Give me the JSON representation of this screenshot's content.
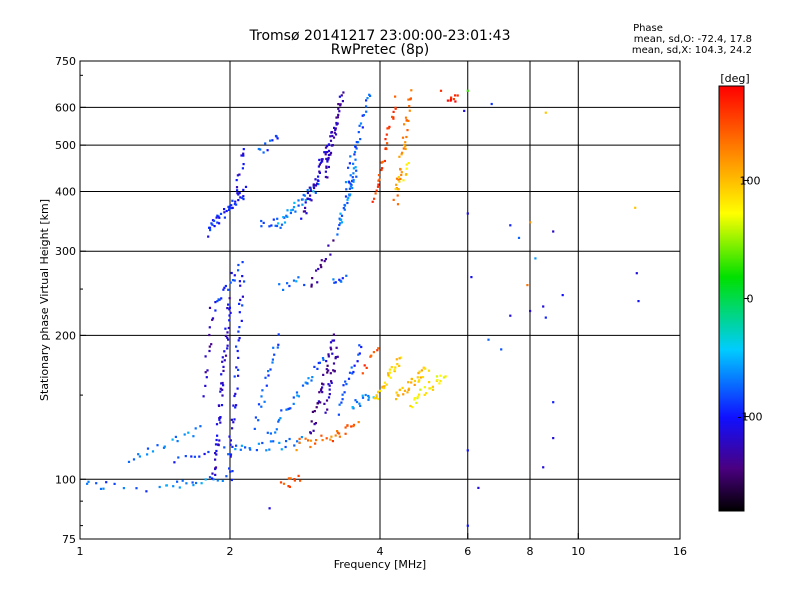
{
  "chart_data": {
    "type": "scatter",
    "title": "Tromsø 20141217 23:00:00-23:01:43",
    "subtitle": "RwPretec (8p)",
    "xlabel": "Frequency [MHz]",
    "ylabel": "Stationary phase Virtual Height [km]",
    "x_scale": "log",
    "y_scale": "log",
    "xlim": [
      1,
      16
    ],
    "ylim": [
      75,
      750
    ],
    "x_ticks": [
      1,
      2,
      4,
      6,
      8,
      10,
      16
    ],
    "y_ticks": [
      75,
      100,
      200,
      300,
      400,
      500,
      600,
      750
    ],
    "x_gridlines": [
      2,
      4,
      6,
      8,
      10
    ],
    "y_gridlines": [
      100,
      200,
      300,
      400,
      500,
      600
    ],
    "grid": true,
    "stats": {
      "heading": "Phase",
      "line_o": "mean, sd,O: -72.4, 17.8",
      "line_x": "mean, sd,X: 104.3, 24.2"
    },
    "colorbar": {
      "label": "[deg]",
      "range": [
        -180,
        180
      ],
      "ticks": [
        100,
        0,
        -100
      ]
    },
    "segments": [
      {
        "f0": 1.0,
        "f1": 1.12,
        "h0": 97,
        "h1": 97,
        "p": -75,
        "n": 6
      },
      {
        "f0": 1.12,
        "f1": 1.35,
        "h0": 97,
        "h1": 96,
        "p": -80,
        "n": 5
      },
      {
        "f0": 1.45,
        "f1": 1.95,
        "h0": 97,
        "h1": 101,
        "p": -65,
        "n": 18
      },
      {
        "f0": 1.25,
        "f1": 1.75,
        "h0": 108,
        "h1": 128,
        "p": -70,
        "n": 18
      },
      {
        "f0": 1.55,
        "f1": 2.0,
        "h0": 110,
        "h1": 120,
        "p": -95,
        "n": 12
      },
      {
        "f0": 1.85,
        "f1": 2.0,
        "h0": 100,
        "h1": 240,
        "p": -115,
        "n": 55
      },
      {
        "f0": 2.0,
        "f1": 2.12,
        "h0": 100,
        "h1": 270,
        "p": -100,
        "n": 40
      },
      {
        "f0": 1.78,
        "f1": 1.84,
        "h0": 150,
        "h1": 230,
        "p": -120,
        "n": 14
      },
      {
        "f0": 2.0,
        "f1": 2.8,
        "h0": 115,
        "h1": 120,
        "p": -70,
        "n": 24
      },
      {
        "f0": 2.25,
        "f1": 2.5,
        "h0": 130,
        "h1": 200,
        "p": -85,
        "n": 20
      },
      {
        "f0": 2.4,
        "f1": 3.1,
        "h0": 125,
        "h1": 180,
        "p": -75,
        "n": 30
      },
      {
        "f0": 2.9,
        "f1": 3.25,
        "h0": 125,
        "h1": 200,
        "p": -130,
        "n": 35
      },
      {
        "f0": 3.1,
        "f1": 3.3,
        "h0": 140,
        "h1": 185,
        "p": -125,
        "n": 20
      },
      {
        "f0": 2.7,
        "f1": 3.2,
        "h0": 118,
        "h1": 122,
        "p": 130,
        "n": 14
      },
      {
        "f0": 3.2,
        "f1": 3.6,
        "h0": 122,
        "h1": 132,
        "p": 140,
        "n": 14
      },
      {
        "f0": 3.3,
        "f1": 3.65,
        "h0": 140,
        "h1": 190,
        "p": -85,
        "n": 20
      },
      {
        "f0": 3.5,
        "f1": 3.85,
        "h0": 142,
        "h1": 150,
        "p": -60,
        "n": 14
      },
      {
        "f0": 3.9,
        "f1": 4.4,
        "h0": 145,
        "h1": 180,
        "p": 90,
        "n": 30
      },
      {
        "f0": 4.3,
        "f1": 5.0,
        "h0": 150,
        "h1": 170,
        "p": 100,
        "n": 30
      },
      {
        "f0": 4.6,
        "f1": 5.4,
        "h0": 145,
        "h1": 165,
        "p": 75,
        "n": 25
      },
      {
        "f0": 3.7,
        "f1": 4.0,
        "h0": 170,
        "h1": 185,
        "p": 150,
        "n": 8
      },
      {
        "f0": 2.55,
        "f1": 2.75,
        "h0": 98,
        "h1": 100,
        "p": 145,
        "n": 10
      },
      {
        "f0": 1.8,
        "f1": 2.15,
        "h0": 330,
        "h1": 400,
        "p": -95,
        "n": 40
      },
      {
        "f0": 2.05,
        "f1": 2.15,
        "h0": 400,
        "h1": 500,
        "p": -110,
        "n": 12
      },
      {
        "f0": 2.3,
        "f1": 2.55,
        "h0": 340,
        "h1": 345,
        "p": -75,
        "n": 10
      },
      {
        "f0": 2.5,
        "f1": 3.0,
        "h0": 345,
        "h1": 410,
        "p": -65,
        "n": 30
      },
      {
        "f0": 2.8,
        "f1": 3.2,
        "h0": 360,
        "h1": 520,
        "p": -115,
        "n": 45
      },
      {
        "f0": 3.1,
        "f1": 3.35,
        "h0": 430,
        "h1": 640,
        "p": -125,
        "n": 40
      },
      {
        "f0": 3.3,
        "f1": 3.6,
        "h0": 330,
        "h1": 460,
        "p": -70,
        "n": 35
      },
      {
        "f0": 3.4,
        "f1": 3.8,
        "h0": 400,
        "h1": 640,
        "p": -80,
        "n": 30
      },
      {
        "f0": 3.9,
        "f1": 4.3,
        "h0": 380,
        "h1": 620,
        "p": 150,
        "n": 30
      },
      {
        "f0": 4.3,
        "f1": 4.6,
        "h0": 380,
        "h1": 640,
        "p": 125,
        "n": 35
      },
      {
        "f0": 4.3,
        "f1": 4.6,
        "h0": 410,
        "h1": 450,
        "p": 90,
        "n": 10
      },
      {
        "f0": 2.3,
        "f1": 2.5,
        "h0": 480,
        "h1": 520,
        "p": -85,
        "n": 10
      },
      {
        "f0": 5.5,
        "f1": 5.7,
        "h0": 610,
        "h1": 640,
        "p": 165,
        "n": 8
      },
      {
        "f0": 1.85,
        "f1": 2.1,
        "h0": 230,
        "h1": 280,
        "p": -95,
        "n": 18
      },
      {
        "f0": 2.5,
        "f1": 2.8,
        "h0": 250,
        "h1": 260,
        "p": -70,
        "n": 8
      },
      {
        "f0": 2.9,
        "f1": 3.2,
        "h0": 250,
        "h1": 310,
        "p": -130,
        "n": 14
      },
      {
        "f0": 3.2,
        "f1": 3.4,
        "h0": 258,
        "h1": 262,
        "p": -80,
        "n": 8
      }
    ],
    "points": [
      {
        "x": 6.0,
        "y": 360,
        "p": -110
      },
      {
        "x": 6.7,
        "y": 610,
        "p": -90
      },
      {
        "x": 7.3,
        "y": 340,
        "p": -95
      },
      {
        "x": 7.6,
        "y": 320,
        "p": -75
      },
      {
        "x": 7.9,
        "y": 255,
        "p": 130
      },
      {
        "x": 8.2,
        "y": 290,
        "p": -60
      },
      {
        "x": 8.5,
        "y": 230,
        "p": -110
      },
      {
        "x": 8.9,
        "y": 330,
        "p": -120
      },
      {
        "x": 9.3,
        "y": 243,
        "p": -100
      },
      {
        "x": 13.0,
        "y": 370,
        "p": 95
      },
      {
        "x": 13.1,
        "y": 270,
        "p": -110
      },
      {
        "x": 13.2,
        "y": 236,
        "p": -100
      },
      {
        "x": 6.0,
        "y": 115,
        "p": -100
      },
      {
        "x": 6.1,
        "y": 265,
        "p": -105
      },
      {
        "x": 6.3,
        "y": 96,
        "p": -110
      },
      {
        "x": 6.6,
        "y": 196,
        "p": -75
      },
      {
        "x": 7.0,
        "y": 187,
        "p": -80
      },
      {
        "x": 7.3,
        "y": 220,
        "p": -110
      },
      {
        "x": 8.5,
        "y": 106,
        "p": -110
      },
      {
        "x": 8.6,
        "y": 218,
        "p": -95
      },
      {
        "x": 8.9,
        "y": 122,
        "p": -110
      },
      {
        "x": 8.9,
        "y": 145,
        "p": -95
      },
      {
        "x": 8.6,
        "y": 585,
        "p": 95
      },
      {
        "x": 6.0,
        "y": 80,
        "p": -100
      },
      {
        "x": 2.4,
        "y": 87,
        "p": -110
      },
      {
        "x": 5.9,
        "y": 590,
        "p": -110
      },
      {
        "x": 5.3,
        "y": 650,
        "p": 160
      },
      {
        "x": 6.0,
        "y": 650,
        "p": 30
      },
      {
        "x": 8.0,
        "y": 345,
        "p": 120
      },
      {
        "x": 8.0,
        "y": 225,
        "p": -115
      }
    ]
  }
}
